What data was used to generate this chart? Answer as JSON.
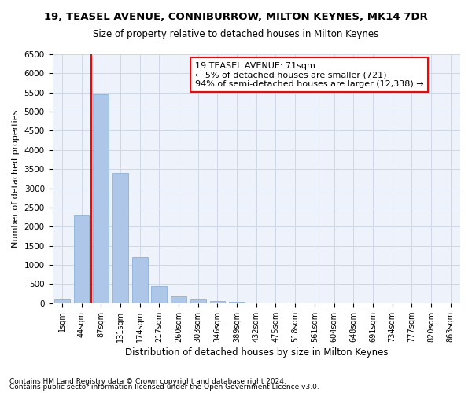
{
  "title1": "19, TEASEL AVENUE, CONNIBURROW, MILTON KEYNES, MK14 7DR",
  "title2": "Size of property relative to detached houses in Milton Keynes",
  "xlabel": "Distribution of detached houses by size in Milton Keynes",
  "ylabel": "Number of detached properties",
  "categories": [
    "1sqm",
    "44sqm",
    "87sqm",
    "131sqm",
    "174sqm",
    "217sqm",
    "260sqm",
    "303sqm",
    "346sqm",
    "389sqm",
    "432sqm",
    "475sqm",
    "518sqm",
    "561sqm",
    "604sqm",
    "648sqm",
    "691sqm",
    "734sqm",
    "777sqm",
    "820sqm",
    "863sqm"
  ],
  "values": [
    100,
    2300,
    5450,
    3400,
    1200,
    450,
    180,
    100,
    50,
    30,
    20,
    15,
    10,
    5,
    3,
    2,
    1,
    1,
    1,
    1,
    1
  ],
  "bar_color": "#aec6e8",
  "bar_edge_color": "#7aabda",
  "annotation_text": "19 TEASEL AVENUE: 71sqm\n← 5% of detached houses are smaller (721)\n94% of semi-detached houses are larger (12,338) →",
  "annotation_box_color": "white",
  "annotation_box_edge": "red",
  "redline_color": "red",
  "grid_color": "#d0d8e8",
  "bg_color": "#eef2fa",
  "ylim": [
    0,
    6500
  ],
  "yticks": [
    0,
    500,
    1000,
    1500,
    2000,
    2500,
    3000,
    3500,
    4000,
    4500,
    5000,
    5500,
    6000,
    6500
  ],
  "footer1": "Contains HM Land Registry data © Crown copyright and database right 2024.",
  "footer2": "Contains public sector information licensed under the Open Government Licence v3.0."
}
